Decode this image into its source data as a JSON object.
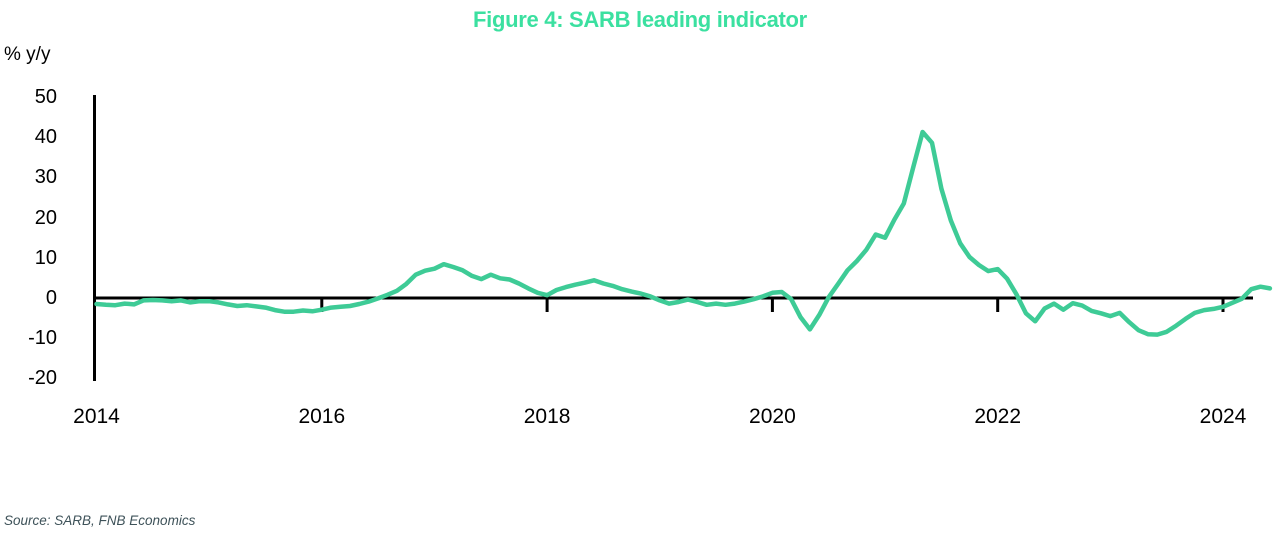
{
  "figure": {
    "title": "Figure 4: SARB leading indicator",
    "y_axis_unit": "% y/y",
    "source_note": "Source: SARB, FNB Economics"
  },
  "colors": {
    "title_green": "#3be0a0",
    "line_green": "#3ecb96",
    "axis_black": "#000000",
    "source_gray": "#3e5259"
  },
  "chart_data": {
    "type": "line",
    "title": "Figure 4: SARB leading indicator",
    "xlabel": "",
    "ylabel": "% y/y",
    "ylim": [
      -20,
      50
    ],
    "xlim": [
      2014.0,
      2024.6
    ],
    "grid": false,
    "legend_position": "none",
    "zero_baseline": true,
    "y_ticks": [
      50,
      40,
      30,
      20,
      10,
      0,
      -10,
      -20
    ],
    "x_tick_years": [
      2014,
      2016,
      2018,
      2020,
      2022,
      2024
    ],
    "x_tick_labels": [
      "2014",
      "2016",
      "2018",
      "2020",
      "2022",
      "2024"
    ],
    "x_start_year": 2014.0,
    "x_step_years": 0.0833333,
    "frequency": "monthly",
    "series": [
      {
        "name": "SARB leading indicator (% y/y)",
        "color": "#3ecb96",
        "values": [
          -1.5,
          -1.7,
          -1.8,
          -1.4,
          -1.6,
          -0.6,
          -0.5,
          -0.6,
          -0.8,
          -0.6,
          -1.1,
          -0.8,
          -0.8,
          -1.1,
          -1.6,
          -2.0,
          -1.8,
          -2.1,
          -2.4,
          -3.0,
          -3.4,
          -3.4,
          -3.1,
          -3.3,
          -2.9,
          -2.4,
          -2.2,
          -2.0,
          -1.5,
          -0.9,
          -0.1,
          0.8,
          1.8,
          3.5,
          5.8,
          6.8,
          7.3,
          8.4,
          7.7,
          6.9,
          5.5,
          4.7,
          5.8,
          4.9,
          4.6,
          3.6,
          2.4,
          1.3,
          0.7,
          2.0,
          2.7,
          3.3,
          3.8,
          4.4,
          3.6,
          3.0,
          2.2,
          1.6,
          1.1,
          0.4,
          -0.6,
          -1.4,
          -1.0,
          -0.4,
          -1.0,
          -1.7,
          -1.4,
          -1.7,
          -1.4,
          -0.9,
          -0.3,
          0.4,
          1.3,
          1.5,
          -0.3,
          -4.8,
          -7.8,
          -4.2,
          0.2,
          3.5,
          6.9,
          9.2,
          12.0,
          15.8,
          15.0,
          19.5,
          23.5,
          32.5,
          41.3,
          38.6,
          27.2,
          19.3,
          13.6,
          10.2,
          8.2,
          6.7,
          7.2,
          4.8,
          0.9,
          -3.8,
          -5.8,
          -2.6,
          -1.4,
          -2.9,
          -1.3,
          -1.9,
          -3.2,
          -3.8,
          -4.5,
          -3.7,
          -6.0,
          -8.0,
          -9.0,
          -9.1,
          -8.4,
          -6.9,
          -5.2,
          -3.7,
          -3.0,
          -2.7,
          -2.2,
          -1.2,
          -0.2,
          2.2,
          2.8,
          2.4
        ]
      }
    ]
  }
}
